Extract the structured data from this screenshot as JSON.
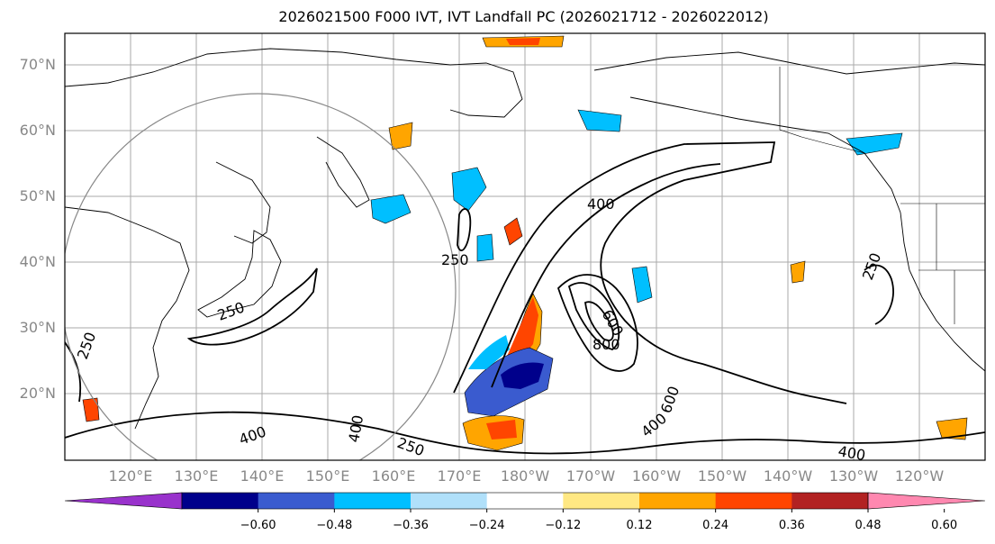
{
  "title": "2026021500 F000 IVT, IVT Landfall PC (2026021712 - 2026022012)",
  "lat_labels": [
    "70°N",
    "60°N",
    "50°N",
    "40°N",
    "30°N",
    "20°N"
  ],
  "lon_labels": [
    "120°E",
    "130°E",
    "140°E",
    "150°E",
    "160°E",
    "170°E",
    "180°W",
    "170°W",
    "160°W",
    "150°W",
    "140°W",
    "130°W",
    "120°W"
  ],
  "contour_labels": [
    "250",
    "400",
    "600",
    "800",
    "250",
    "250",
    "400",
    "400",
    "250",
    "400",
    "600",
    "250",
    "400"
  ],
  "colorbar": {
    "ticks": [
      "−0.60",
      "−0.48",
      "−0.36",
      "−0.24",
      "−0.12",
      "0.12",
      "0.24",
      "0.36",
      "0.48",
      "0.60"
    ],
    "colors": [
      "#9932cc",
      "#00008b",
      "#3a5bcf",
      "#00bfff",
      "#b0e0fa",
      "#ffffff",
      "#ffe883",
      "#ffa500",
      "#ff4500",
      "#b22222",
      "#ff88b0"
    ]
  },
  "colors": {
    "grid": "#aaaaaa",
    "contour": "#000000",
    "circle": "#888888"
  }
}
